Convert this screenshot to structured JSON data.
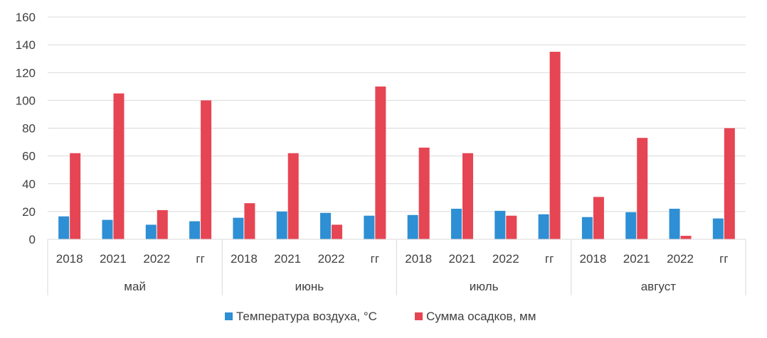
{
  "chart_data": {
    "type": "bar",
    "title": "",
    "xlabel": "",
    "ylabel": "",
    "ylim": [
      0,
      160
    ],
    "yticks": [
      "0",
      "20",
      "40",
      "60",
      "80",
      "100",
      "120",
      "140",
      "160"
    ],
    "grid": true,
    "legend_position": "bottom",
    "groups": [
      {
        "label": "май",
        "categories": [
          "2018",
          "2021",
          "2022",
          "гг"
        ]
      },
      {
        "label": "июнь",
        "categories": [
          "2018",
          "2021",
          "2022",
          "гг"
        ]
      },
      {
        "label": "июль",
        "categories": [
          "2018",
          "2021",
          "2022",
          "гг"
        ]
      },
      {
        "label": "август",
        "categories": [
          "2018",
          "2021",
          "2022",
          "гг"
        ]
      }
    ],
    "series": [
      {
        "name": "Температура воздуха, °С",
        "color": "#2e8fd4",
        "values": [
          16.5,
          14,
          10.5,
          13,
          15.5,
          20,
          19,
          17,
          17.5,
          22,
          20.5,
          18,
          16,
          19.5,
          22,
          15
        ]
      },
      {
        "name": "Сумма осадков, мм",
        "color": "#e64553",
        "values": [
          62,
          105,
          21,
          100,
          26,
          62,
          10.5,
          110,
          66,
          62,
          17,
          135,
          30.5,
          73,
          2.5,
          80
        ]
      }
    ]
  }
}
